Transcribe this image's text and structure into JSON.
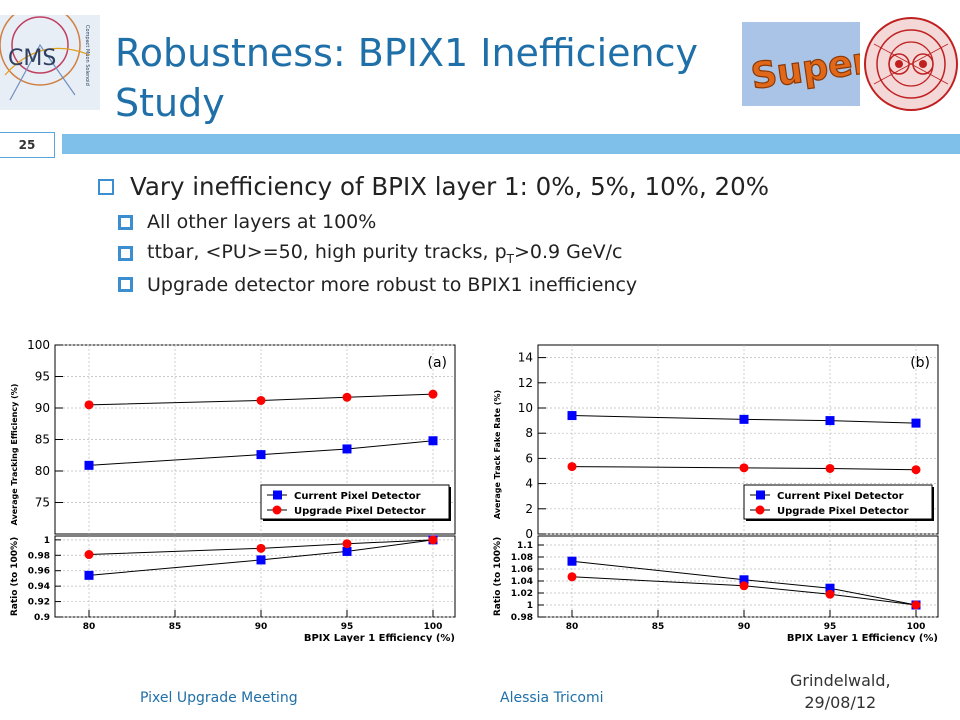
{
  "slide": {
    "title_line1": "Robustness: BPIX1 Inefficiency",
    "title_line2": "Study",
    "number": "25",
    "logo_super_text": "Super",
    "logo_cms_text": "CMS",
    "logo_cms_small": "Compact Muon Solenoid"
  },
  "bullets": {
    "main": "Vary inefficiency of BPIX layer 1: 0%, 5%, 10%, 20%",
    "sub1": "All other layers at 100%",
    "sub2_pre": "ttbar, <PU>=50, high purity tracks, p",
    "sub2_sub": "T",
    "sub2_post": ">0.9 GeV/c",
    "sub3": "Upgrade detector more robust to BPIX1 inefficiency"
  },
  "footer": {
    "left": "Pixel Upgrade Meeting",
    "center": "Alessia Tricomi",
    "right_line1": "Grindelwald,",
    "right_line2": "29/08/12"
  },
  "colors": {
    "title": "#1f6fa8",
    "band": "#7fc0ea",
    "current": "#0000ff",
    "upgrade": "#ff0000"
  },
  "chart_data": [
    {
      "type": "line",
      "panel_label": "(a)",
      "xlabel": "BPIX Layer 1 Efficiency (%)",
      "ylabel": "Average Tracking Efficiency (%)",
      "x": [
        80,
        90,
        95,
        100
      ],
      "ylim": [
        70,
        100
      ],
      "yticks": [
        75,
        80,
        85,
        90,
        95,
        100
      ],
      "series": [
        {
          "name": "Current Pixel Detector",
          "marker": "square",
          "color": "#0000ff",
          "values": [
            80.9,
            82.6,
            83.5,
            84.8
          ]
        },
        {
          "name": "Upgrade Pixel Detector",
          "marker": "circle",
          "color": "#ff0000",
          "values": [
            90.5,
            91.2,
            91.7,
            92.2
          ]
        }
      ],
      "ratio": {
        "ylabel": "Ratio (to 100%)",
        "ylim": [
          0.9,
          1.005
        ],
        "yticks": [
          0.9,
          0.92,
          0.94,
          0.96,
          0.98,
          1
        ],
        "series": [
          {
            "name": "Current Pixel Detector",
            "values": [
              0.954,
              0.974,
              0.985,
              1.0
            ]
          },
          {
            "name": "Upgrade Pixel Detector",
            "values": [
              0.981,
              0.989,
              0.995,
              1.0
            ]
          }
        ]
      },
      "xlim": [
        78,
        101
      ],
      "xticks": [
        80,
        85,
        90,
        95,
        100
      ],
      "legend_position": "lower-right"
    },
    {
      "type": "line",
      "panel_label": "(b)",
      "xlabel": "BPIX Layer 1 Efficiency (%)",
      "ylabel": "Average Track Fake Rate (%)",
      "x": [
        80,
        90,
        95,
        100
      ],
      "ylim": [
        0,
        15
      ],
      "yticks": [
        0,
        2,
        4,
        6,
        8,
        10,
        12,
        14
      ],
      "series": [
        {
          "name": "Current Pixel Detector",
          "marker": "square",
          "color": "#0000ff",
          "values": [
            9.4,
            9.1,
            9.0,
            8.8
          ]
        },
        {
          "name": "Upgrade Pixel Detector",
          "marker": "circle",
          "color": "#ff0000",
          "values": [
            5.35,
            5.25,
            5.2,
            5.1
          ]
        }
      ],
      "ratio": {
        "ylabel": "Ratio (to 100%)",
        "ylim": [
          0.98,
          1.115
        ],
        "yticks": [
          0.98,
          1,
          1.02,
          1.04,
          1.06,
          1.08,
          1.1
        ],
        "series": [
          {
            "name": "Current Pixel Detector",
            "values": [
              1.073,
              1.042,
              1.028,
              1.0
            ]
          },
          {
            "name": "Upgrade Pixel Detector",
            "values": [
              1.047,
              1.032,
              1.018,
              1.0
            ]
          }
        ]
      },
      "xlim": [
        78,
        101
      ],
      "xticks": [
        80,
        85,
        90,
        95,
        100
      ],
      "legend_position": "lower-right"
    }
  ]
}
